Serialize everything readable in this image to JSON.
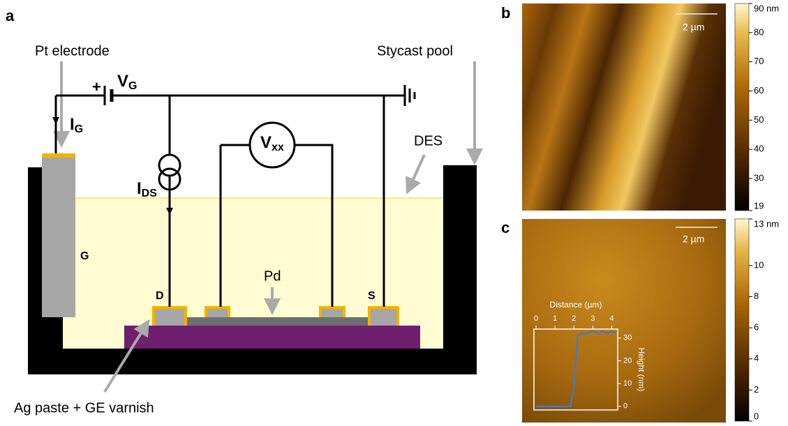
{
  "panel_a": {
    "label": "a",
    "pt_electrode": "Pt electrode",
    "stycast_pool": "Stycast pool",
    "des": "DES",
    "gate": "G",
    "drain": "D",
    "source": "S",
    "pd": "Pd",
    "ag_paste": "Ag paste + GE varnish",
    "plus": "+",
    "vg": {
      "main": "V",
      "sub": "G"
    },
    "ig": {
      "main": "I",
      "sub": "G"
    },
    "ids": {
      "main": "I",
      "sub": "DS"
    },
    "vxx": {
      "main": "V",
      "sub": "xx"
    }
  },
  "panel_b": {
    "label": "b",
    "scale_bar": "2 µm",
    "colorbar": {
      "ticks": [
        {
          "value": 90,
          "label": "90 nm"
        },
        80,
        70,
        60,
        50,
        40,
        30,
        19
      ],
      "lim": [
        19,
        90
      ]
    }
  },
  "panel_c": {
    "label": "c",
    "scale_bar": "2 µm",
    "colorbar": {
      "ticks": [
        {
          "value": 13,
          "label": "13 nm"
        },
        10,
        8,
        6,
        4,
        2,
        0
      ],
      "lim": [
        0,
        13
      ]
    },
    "inset": {
      "x_label": "Distance (µm)",
      "y_label": "Height (nm)",
      "xlim": [
        0,
        4.2
      ],
      "ylim": [
        -1,
        33
      ],
      "xticks": [
        0,
        1,
        2,
        3,
        4
      ],
      "yticks": [
        0,
        10,
        20,
        30
      ],
      "color": "#4a78c0",
      "x": [
        0,
        0.5,
        1,
        1.5,
        1.8,
        2.0,
        2.2,
        2.4,
        2.7,
        3.0,
        3.3,
        3.5,
        3.8,
        4.0,
        4.2
      ],
      "y": [
        0,
        0,
        0,
        0,
        0,
        8,
        31,
        32,
        32,
        33,
        32,
        33,
        32,
        33,
        32
      ]
    }
  }
}
